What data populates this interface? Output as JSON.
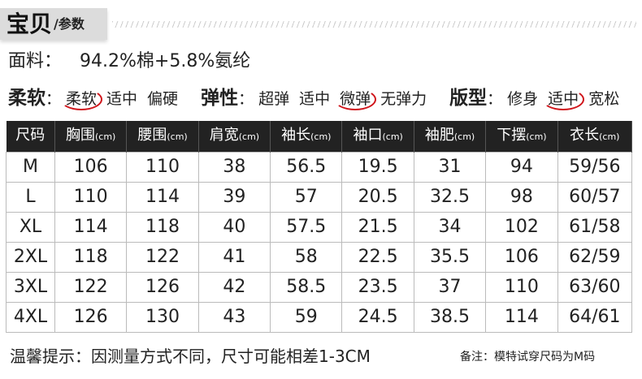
{
  "header": {
    "title": "宝贝",
    "subtitle": "/参数"
  },
  "fabric": {
    "label": "面料：",
    "value": "94.2%棉+5.8%氨纶"
  },
  "attributes": [
    {
      "label": "柔软",
      "options": [
        "柔软",
        "适中",
        "偏硬"
      ],
      "selected": 0
    },
    {
      "label": "弹性",
      "options": [
        "超弹",
        "适中",
        "微弹",
        "无弹力"
      ],
      "selected": 2
    },
    {
      "label": "版型",
      "options": [
        "修身",
        "适中",
        "宽松"
      ],
      "selected": 1
    }
  ],
  "table": {
    "columns": [
      {
        "name": "尺码",
        "unit": ""
      },
      {
        "name": "胸围",
        "unit": "(cm)"
      },
      {
        "name": "腰围",
        "unit": "(cm)"
      },
      {
        "name": "肩宽",
        "unit": "(cm)"
      },
      {
        "name": "袖长",
        "unit": "(cm)"
      },
      {
        "name": "袖口",
        "unit": "(cm)"
      },
      {
        "name": "袖肥",
        "unit": "(cm)"
      },
      {
        "name": "下摆",
        "unit": "(cm)"
      },
      {
        "name": "衣长",
        "unit": "(cm)"
      }
    ],
    "rows": [
      [
        "M",
        "106",
        "110",
        "38",
        "56.5",
        "19.5",
        "31",
        "94",
        "59/56"
      ],
      [
        "L",
        "110",
        "114",
        "39",
        "57",
        "20.5",
        "32.5",
        "98",
        "60/57"
      ],
      [
        "XL",
        "114",
        "118",
        "40",
        "57.5",
        "21.5",
        "34",
        "102",
        "61/58"
      ],
      [
        "2XL",
        "118",
        "122",
        "41",
        "58",
        "22.5",
        "35.5",
        "106",
        "62/59"
      ],
      [
        "3XL",
        "122",
        "126",
        "42",
        "58.5",
        "23.5",
        "37",
        "110",
        "63/60"
      ],
      [
        "4XL",
        "126",
        "130",
        "43",
        "59",
        "24.5",
        "38.5",
        "114",
        "64/61"
      ]
    ]
  },
  "footer": {
    "tip": "温馨提示：因测量方式不同，尺寸可能相差1-3CM",
    "note": "备注：模特试穿尺码为M码"
  },
  "colors": {
    "header_bg": "#222222",
    "highlight": "#d0151b"
  }
}
